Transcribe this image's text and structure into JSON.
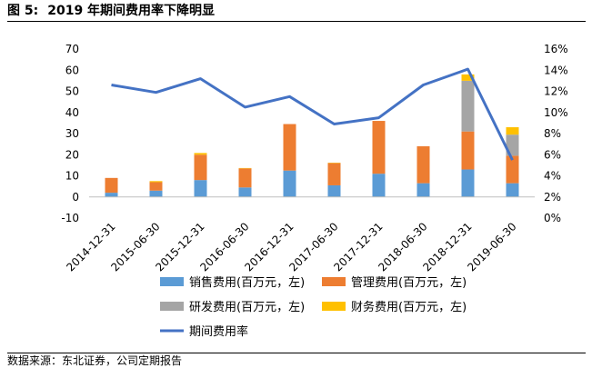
{
  "figure": {
    "number": "图 5:",
    "title": "2019 年期间费用率下降明显"
  },
  "source": "数据来源：东北证券，公司定期报告",
  "chart_data": {
    "type": "bar+line",
    "categories": [
      "2014-12-31",
      "2015-06-30",
      "2015-12-31",
      "2016-06-30",
      "2016-12-31",
      "2017-06-30",
      "2017-12-31",
      "2018-06-30",
      "2018-12-31",
      "2019-06-30"
    ],
    "left_axis": {
      "ylim": [
        -10,
        70
      ],
      "ticks": [
        "-10",
        "0",
        "10",
        "20",
        "30",
        "40",
        "50",
        "60",
        "70"
      ]
    },
    "right_axis": {
      "ylim": [
        0,
        16
      ],
      "ticks": [
        "0%",
        "2%",
        "4%",
        "6%",
        "8%",
        "10%",
        "12%",
        "14%",
        "16%"
      ]
    },
    "grid": false,
    "legend_position": "bottom",
    "series": [
      {
        "name": "销售费用(百万元，左)",
        "type": "bar",
        "axis": "left",
        "color": "#5B9BD5",
        "values": [
          2,
          3,
          8,
          4.5,
          12.5,
          5.5,
          11,
          6.5,
          13,
          6.5
        ]
      },
      {
        "name": "管理费用(百万元，左)",
        "type": "bar",
        "axis": "left",
        "color": "#ED7D31",
        "values": [
          7,
          4,
          12,
          9,
          22,
          10.5,
          25,
          17.5,
          18,
          13
        ]
      },
      {
        "name": "研发费用(百万元，左)",
        "type": "bar",
        "axis": "left",
        "color": "#A5A5A5",
        "values": [
          0,
          0,
          0,
          0,
          0,
          0,
          0,
          0,
          24,
          10
        ]
      },
      {
        "name": "财务费用(百万元，左)",
        "type": "bar",
        "axis": "left",
        "color": "#FFC000",
        "values": [
          0,
          0.5,
          0.8,
          0.2,
          0,
          0.2,
          0,
          0,
          3,
          3.5
        ]
      },
      {
        "name": "期间费用率",
        "type": "line",
        "axis": "right",
        "color": "#4472C4",
        "values": [
          12.6,
          11.9,
          13.2,
          10.5,
          11.5,
          8.9,
          9.5,
          12.6,
          14.1,
          5.5
        ]
      }
    ]
  }
}
